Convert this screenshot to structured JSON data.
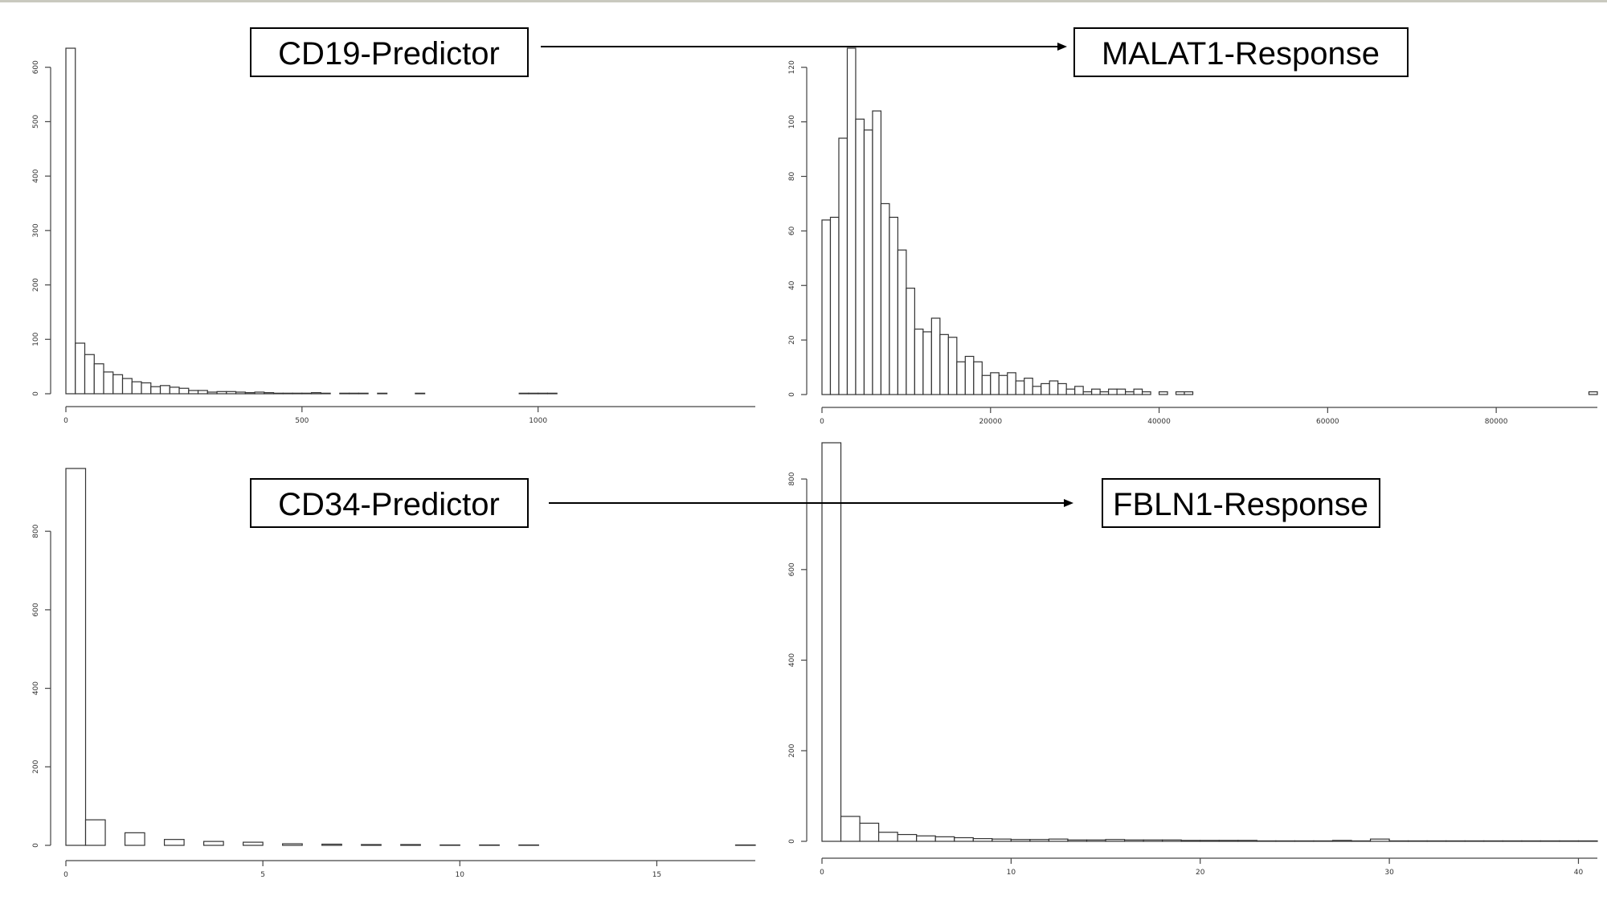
{
  "labels": {
    "cd19": "CD19-Predictor",
    "malat1": "MALAT1-Response",
    "cd34": "CD34-Predictor",
    "fbln1": "FBLN1-Response"
  },
  "chart_data": [
    {
      "id": "cd19",
      "type": "histogram",
      "title": "",
      "xlabel": "",
      "ylabel": "",
      "xlim": [
        0,
        1460
      ],
      "ylim": [
        0,
        635
      ],
      "xticks": [
        0,
        500,
        1000
      ],
      "yticks": [
        0,
        100,
        200,
        300,
        400,
        500,
        600
      ],
      "bin_width": 20,
      "x_start": 0,
      "counts": [
        635,
        93,
        72,
        55,
        40,
        35,
        28,
        22,
        20,
        13,
        15,
        12,
        10,
        6,
        6,
        3,
        4,
        4,
        3,
        2,
        3,
        2,
        1,
        1,
        1,
        1,
        2,
        1,
        0,
        1,
        1,
        1,
        0,
        1,
        0,
        0,
        0,
        1,
        0,
        0,
        0,
        0,
        0,
        0,
        0,
        0,
        0,
        0,
        1,
        1,
        1,
        1
      ]
    },
    {
      "id": "malat1",
      "type": "histogram",
      "title": "",
      "xlabel": "",
      "ylabel": "",
      "xlim": [
        0,
        92000
      ],
      "ylim": [
        0,
        127
      ],
      "xticks": [
        0,
        20000,
        40000,
        60000,
        80000
      ],
      "yticks": [
        0,
        20,
        40,
        60,
        80,
        100,
        120
      ],
      "bin_width": 1000,
      "x_start": 0,
      "counts": [
        64,
        65,
        94,
        127,
        101,
        97,
        104,
        70,
        65,
        53,
        39,
        24,
        23,
        28,
        22,
        21,
        12,
        14,
        12,
        7,
        8,
        7,
        8,
        5,
        6,
        3,
        4,
        5,
        4,
        2,
        3,
        1,
        2,
        1,
        2,
        2,
        1,
        2,
        1,
        0,
        1,
        0,
        1,
        1,
        0,
        0,
        0,
        0,
        0,
        0,
        0,
        0,
        0,
        0,
        0,
        0,
        0,
        0,
        0,
        0,
        0,
        0,
        0,
        0,
        0,
        0,
        0,
        0,
        0,
        0,
        0,
        0,
        0,
        0,
        0,
        0,
        0,
        0,
        0,
        0,
        0,
        0,
        0,
        0,
        0,
        0,
        0,
        0,
        0,
        0,
        0,
        1
      ]
    },
    {
      "id": "cd34",
      "type": "histogram",
      "title": "",
      "xlabel": "",
      "ylabel": "",
      "xlim": [
        0,
        17.5
      ],
      "ylim": [
        0,
        960
      ],
      "xticks": [
        0,
        5,
        10,
        15
      ],
      "yticks": [
        0,
        200,
        400,
        600,
        800
      ],
      "bin_width": 0.5,
      "x_start": 0,
      "counts": [
        960,
        65,
        0,
        32,
        0,
        15,
        0,
        10,
        0,
        8,
        0,
        4,
        0,
        3,
        0,
        2,
        0,
        2,
        0,
        1,
        0,
        1,
        0,
        1,
        0,
        0,
        0,
        0,
        0,
        0,
        0,
        0,
        0,
        0,
        1
      ]
    },
    {
      "id": "fbln1",
      "type": "histogram",
      "title": "",
      "xlabel": "",
      "ylabel": "",
      "xlim": [
        0,
        41
      ],
      "ylim": [
        0,
        880
      ],
      "xticks": [
        0,
        10,
        20,
        30,
        40
      ],
      "yticks": [
        0,
        200,
        400,
        600,
        800
      ],
      "bin_width": 1,
      "x_start": 0,
      "counts": [
        880,
        55,
        40,
        20,
        15,
        12,
        10,
        8,
        6,
        5,
        4,
        4,
        5,
        3,
        3,
        4,
        3,
        3,
        3,
        2,
        2,
        2,
        2,
        1,
        1,
        1,
        1,
        2,
        1,
        5,
        1,
        1,
        1,
        1,
        1,
        1,
        1,
        1,
        1,
        1,
        1
      ]
    }
  ]
}
